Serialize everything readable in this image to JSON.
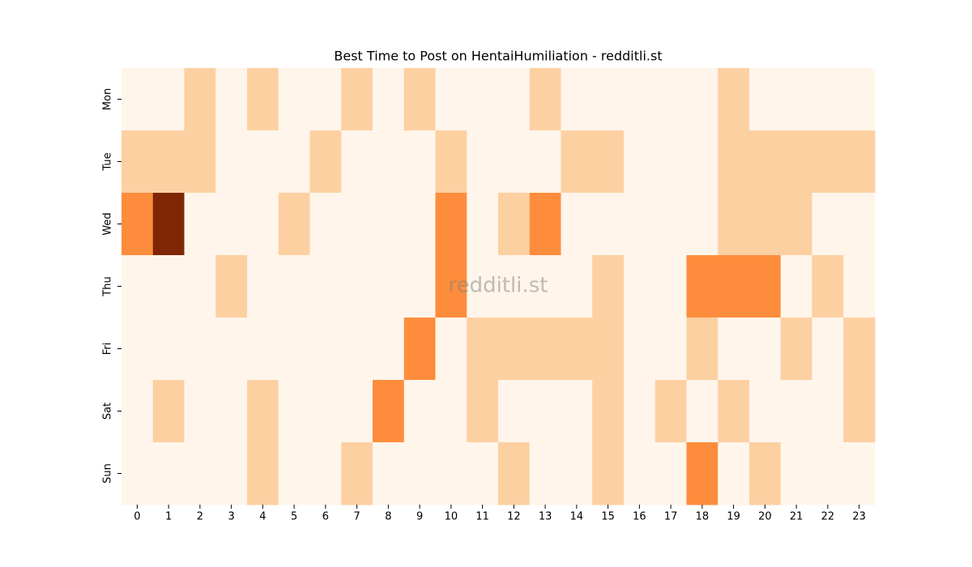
{
  "chart_data": {
    "type": "heatmap",
    "title": "Best Time to Post on HentaiHumiliation - redditli.st",
    "watermark": "redditli.st",
    "x": [
      0,
      1,
      2,
      3,
      4,
      5,
      6,
      7,
      8,
      9,
      10,
      11,
      12,
      13,
      14,
      15,
      16,
      17,
      18,
      19,
      20,
      21,
      22,
      23
    ],
    "y": [
      "Mon",
      "Tue",
      "Wed",
      "Thu",
      "Fri",
      "Sat",
      "Sun"
    ],
    "values": [
      [
        0,
        0,
        1,
        0,
        1,
        0,
        0,
        1,
        0,
        1,
        0,
        0,
        0,
        1,
        0,
        0,
        0,
        0,
        0,
        1,
        0,
        0,
        0,
        0
      ],
      [
        1,
        1,
        1,
        0,
        0,
        0,
        1,
        0,
        0,
        0,
        1,
        0,
        0,
        0,
        1,
        1,
        0,
        0,
        0,
        1,
        1,
        1,
        1,
        1
      ],
      [
        2,
        4,
        0,
        0,
        0,
        1,
        0,
        0,
        0,
        0,
        2,
        0,
        1,
        2,
        0,
        0,
        0,
        0,
        0,
        1,
        1,
        1,
        0,
        0
      ],
      [
        0,
        0,
        0,
        1,
        0,
        0,
        0,
        0,
        0,
        0,
        2,
        0,
        0,
        0,
        0,
        1,
        0,
        0,
        2,
        2,
        2,
        0,
        1,
        0
      ],
      [
        0,
        0,
        0,
        0,
        0,
        0,
        0,
        0,
        0,
        2,
        0,
        1,
        1,
        1,
        1,
        1,
        0,
        0,
        1,
        0,
        0,
        1,
        0,
        1
      ],
      [
        0,
        1,
        0,
        0,
        1,
        0,
        0,
        0,
        2,
        0,
        0,
        1,
        0,
        0,
        0,
        1,
        0,
        1,
        0,
        1,
        0,
        0,
        0,
        1
      ],
      [
        0,
        0,
        0,
        0,
        1,
        0,
        0,
        1,
        0,
        0,
        0,
        0,
        1,
        0,
        0,
        1,
        0,
        0,
        2,
        0,
        1,
        0,
        0,
        0
      ]
    ],
    "vlim": [
      0,
      4
    ],
    "colorscale": [
      "#fff5eb",
      "#fdd0a2",
      "#fd8d3c",
      "#d94801",
      "#7f2704"
    ]
  }
}
